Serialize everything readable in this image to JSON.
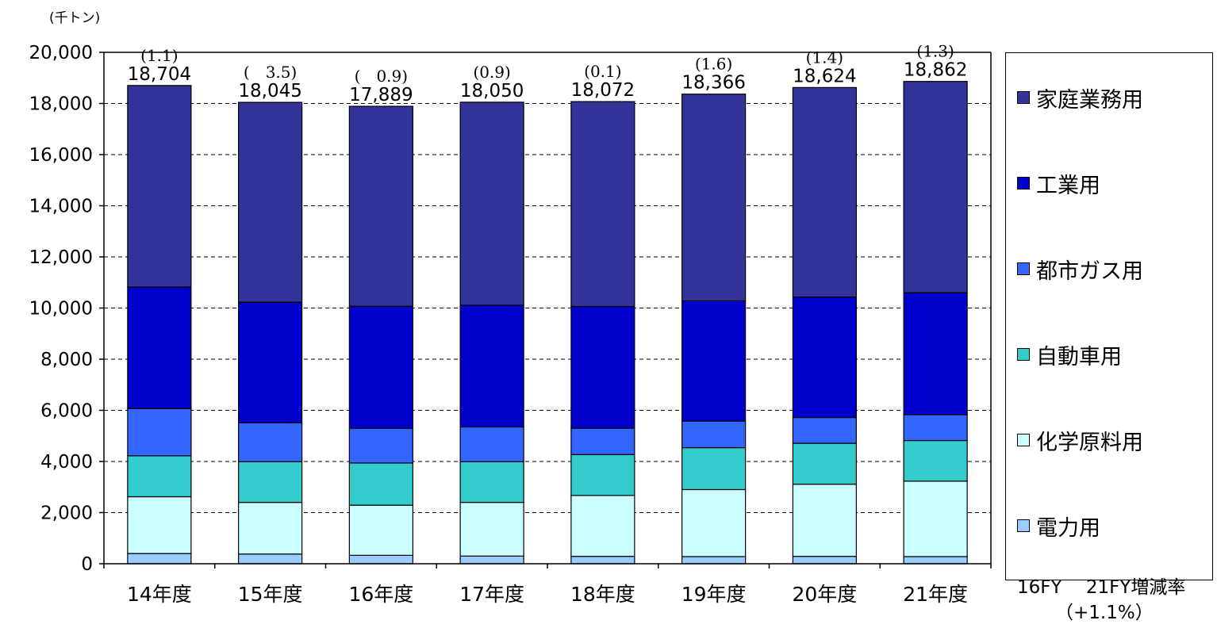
{
  "chart_data": {
    "type": "bar",
    "stacked": true,
    "unit_label": "(千トン)",
    "categories": [
      "14年度",
      "15年度",
      "16年度",
      "17年度",
      "18年度",
      "19年度",
      "20年度",
      "21年度"
    ],
    "totals": [
      18704,
      18045,
      17889,
      18050,
      18072,
      18366,
      18624,
      18862
    ],
    "total_labels": [
      "18,704",
      "18,045",
      "17,889",
      "18,050",
      "18,072",
      "18,366",
      "18,624",
      "18,862"
    ],
    "change_labels": [
      "(1.1)",
      "(　3.5)",
      "(　0.9)",
      "(0.9)",
      "(0.1)",
      "(1.6)",
      "(1.4)",
      "(1.3)"
    ],
    "series": [
      {
        "name": "電力用",
        "color": "#99ccff",
        "values": [
          400,
          380,
          330,
          300,
          290,
          280,
          290,
          280
        ]
      },
      {
        "name": "化学原料用",
        "color": "#ccffff",
        "values": [
          2220,
          2020,
          1960,
          2100,
          2380,
          2620,
          2820,
          2950
        ]
      },
      {
        "name": "自動車用",
        "color": "#33cccc",
        "values": [
          1600,
          1590,
          1650,
          1590,
          1600,
          1640,
          1600,
          1590
        ]
      },
      {
        "name": "都市ガス用",
        "color": "#3366ff",
        "values": [
          1850,
          1520,
          1360,
          1360,
          1030,
          1040,
          1010,
          1010
        ]
      },
      {
        "name": "工業用",
        "color": "#0000cc",
        "values": [
          4750,
          4720,
          4770,
          4760,
          4760,
          4700,
          4710,
          4770
        ]
      },
      {
        "name": "家庭業務用",
        "color": "#333399",
        "values": [
          7884,
          7815,
          7819,
          7940,
          8012,
          8086,
          8194,
          8262
        ]
      }
    ],
    "ylim": [
      0,
      20000
    ],
    "yticks": [
      0,
      2000,
      4000,
      6000,
      8000,
      10000,
      12000,
      14000,
      16000,
      18000,
      20000
    ],
    "ytick_labels": [
      "0",
      "2,000",
      "4,000",
      "6,000",
      "8,000",
      "10,000",
      "12,000",
      "14,000",
      "16,000",
      "18,000",
      "20,000"
    ],
    "grid": true,
    "legend_position": "right",
    "legend_order": [
      "家庭業務用",
      "工業用",
      "都市ガス用",
      "自動車用",
      "化学原料用",
      "電力用"
    ]
  },
  "footer": {
    "label": "16FY　 21FY増減率",
    "rate": "（+1.1%）"
  }
}
